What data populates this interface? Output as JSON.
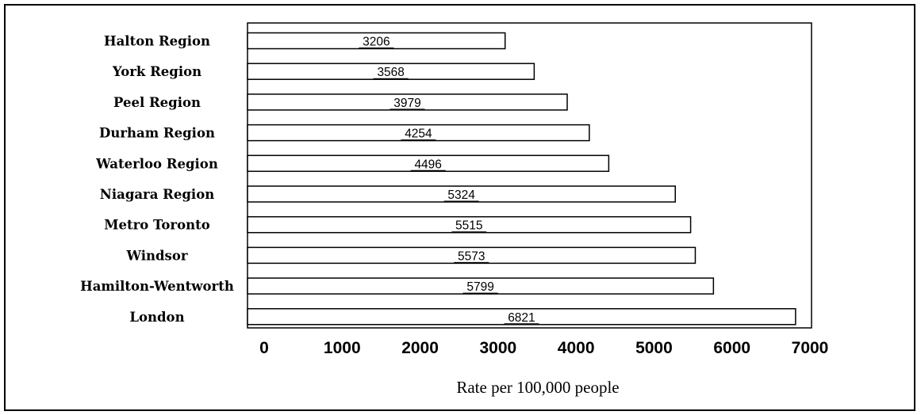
{
  "chart_data": {
    "type": "bar",
    "orientation": "horizontal",
    "categories": [
      "Halton Region",
      "York Region",
      "Peel Region",
      "Durham Region",
      "Waterloo Region",
      "Niagara Region",
      "Metro Toronto",
      "Windsor",
      "Hamilton-Wentworth",
      "London"
    ],
    "values": [
      3206,
      3568,
      3979,
      4254,
      4496,
      5324,
      5515,
      5573,
      5799,
      6821
    ],
    "data_labels": [
      "3206",
      "3568",
      "3979",
      "4254",
      "4496",
      "5324",
      "5515",
      "5573",
      "5799",
      "6821"
    ],
    "x_ticks": [
      "0",
      "1000",
      "2000",
      "3000",
      "4000",
      "5000",
      "6000",
      "7000"
    ],
    "xlabel": "Rate per 100,000 people",
    "ylabel": "",
    "title": "",
    "xlim": [
      0,
      7000
    ],
    "grid": false,
    "legend": "none",
    "bar_fill": "#ffffff",
    "bar_stroke": "#000000"
  }
}
